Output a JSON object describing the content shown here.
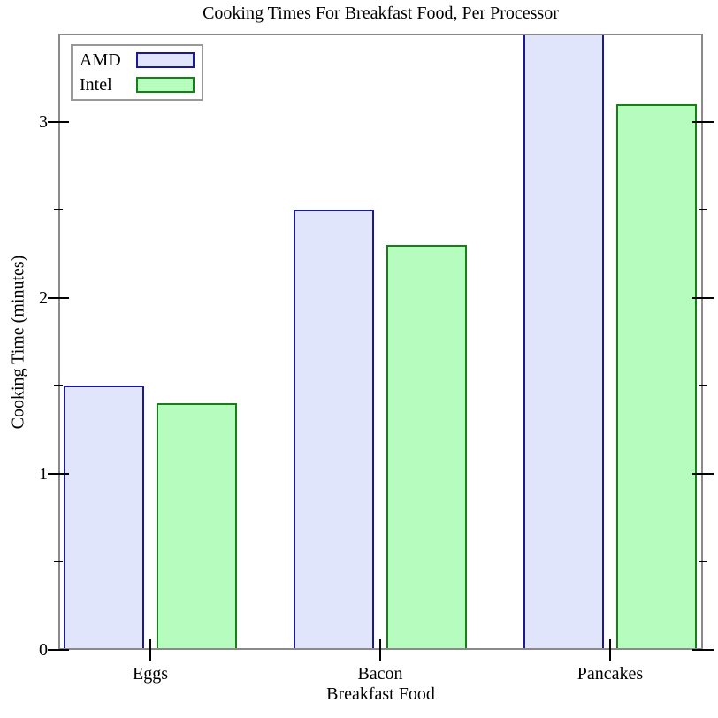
{
  "title": "Cooking Times For Breakfast Food, Per Processor",
  "colors": {
    "frame": "#8a8a8a",
    "tick": "#000000",
    "text": "#000000",
    "legend_border": "#999999",
    "background": "#ffffff"
  },
  "chart_data": {
    "type": "bar",
    "title": "Cooking Times For Breakfast Food, Per Processor",
    "xlabel": "Breakfast Food",
    "ylabel": "Cooking Time (minutes)",
    "categories": [
      "Eggs",
      "Bacon",
      "Pancakes"
    ],
    "series": [
      {
        "name": "AMD",
        "values": [
          1.5,
          2.5,
          3.5
        ],
        "fill": "#e0e5fb",
        "border": "#1a1a99"
      },
      {
        "name": "Intel",
        "values": [
          1.4,
          2.3,
          3.1
        ],
        "fill": "#b5fcbe",
        "border": "#158115"
      }
    ],
    "ylim": [
      0,
      3.5
    ],
    "y_major_ticks": [
      0,
      1,
      2,
      3
    ],
    "y_minor_ticks": [
      0.5,
      1.5,
      2.5
    ],
    "grid": false,
    "legend_position": "top-left"
  }
}
